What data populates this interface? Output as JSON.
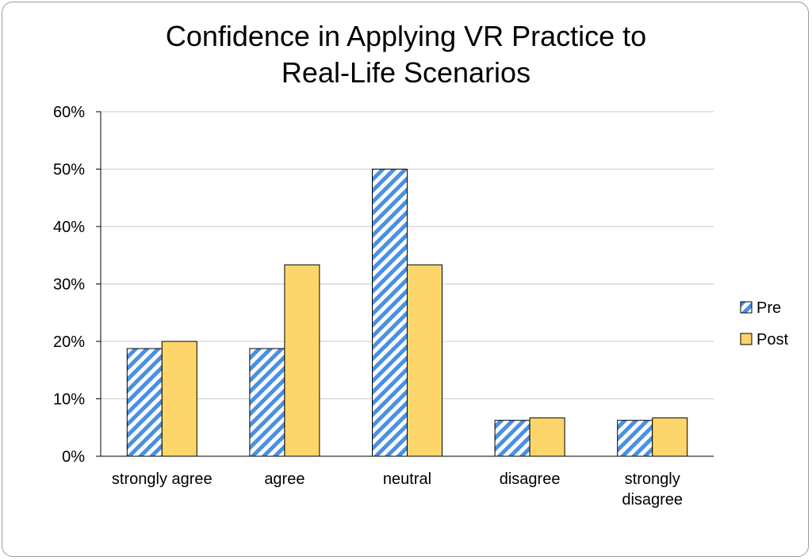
{
  "chart_data": {
    "type": "bar",
    "title_lines": [
      "Confidence in Applying VR Practice to",
      "Real-Life Scenarios"
    ],
    "categories": [
      [
        "strongly agree"
      ],
      [
        "agree"
      ],
      [
        "neutral"
      ],
      [
        "disagree"
      ],
      [
        "strongly",
        "disagree"
      ]
    ],
    "series": [
      {
        "name": "Pre",
        "values": [
          18.75,
          18.75,
          50.0,
          6.25,
          6.25
        ],
        "color": "#4a90e2",
        "pattern": "diagonal-stripes"
      },
      {
        "name": "Post",
        "values": [
          20.0,
          33.33,
          33.33,
          6.67,
          6.67
        ],
        "color": "#fcd66b"
      }
    ],
    "ylim": [
      0,
      60
    ],
    "yticks": [
      "0%",
      "10%",
      "20%",
      "30%",
      "40%",
      "50%",
      "60%"
    ],
    "grid": true,
    "legend_position": "right"
  }
}
